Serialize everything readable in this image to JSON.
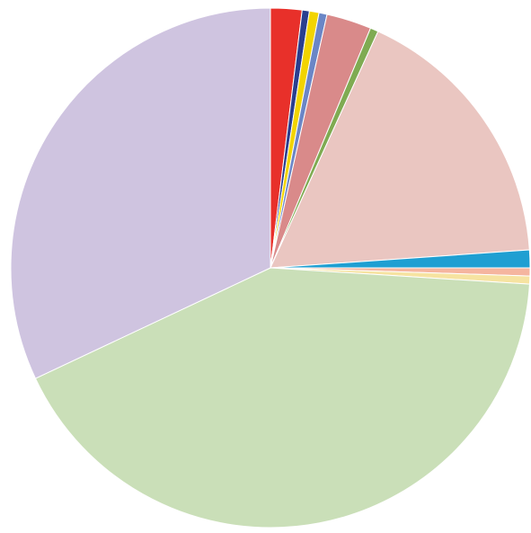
{
  "chart_data": {
    "type": "pie",
    "legend": "none",
    "start_angle_deg": 0,
    "direction": "clockwise",
    "slices": [
      {
        "value": 1.95,
        "color": "#e8302a"
      },
      {
        "value": 0.45,
        "color": "#2a3e8f"
      },
      {
        "value": 0.6,
        "color": "#f2d400"
      },
      {
        "value": 0.5,
        "color": "#6b86c6"
      },
      {
        "value": 2.8,
        "color": "#d98a8a"
      },
      {
        "value": 0.5,
        "color": "#7fab52"
      },
      {
        "value": 17.1,
        "color": "#eac6c1"
      },
      {
        "value": 1.1,
        "color": "#1f9fd2"
      },
      {
        "value": 0.5,
        "color": "#f5b59f"
      },
      {
        "value": 0.5,
        "color": "#f6e3a1"
      },
      {
        "value": 42.0,
        "color": "#cadfb8"
      },
      {
        "value": 32.0,
        "color": "#cfc4e0"
      }
    ]
  }
}
